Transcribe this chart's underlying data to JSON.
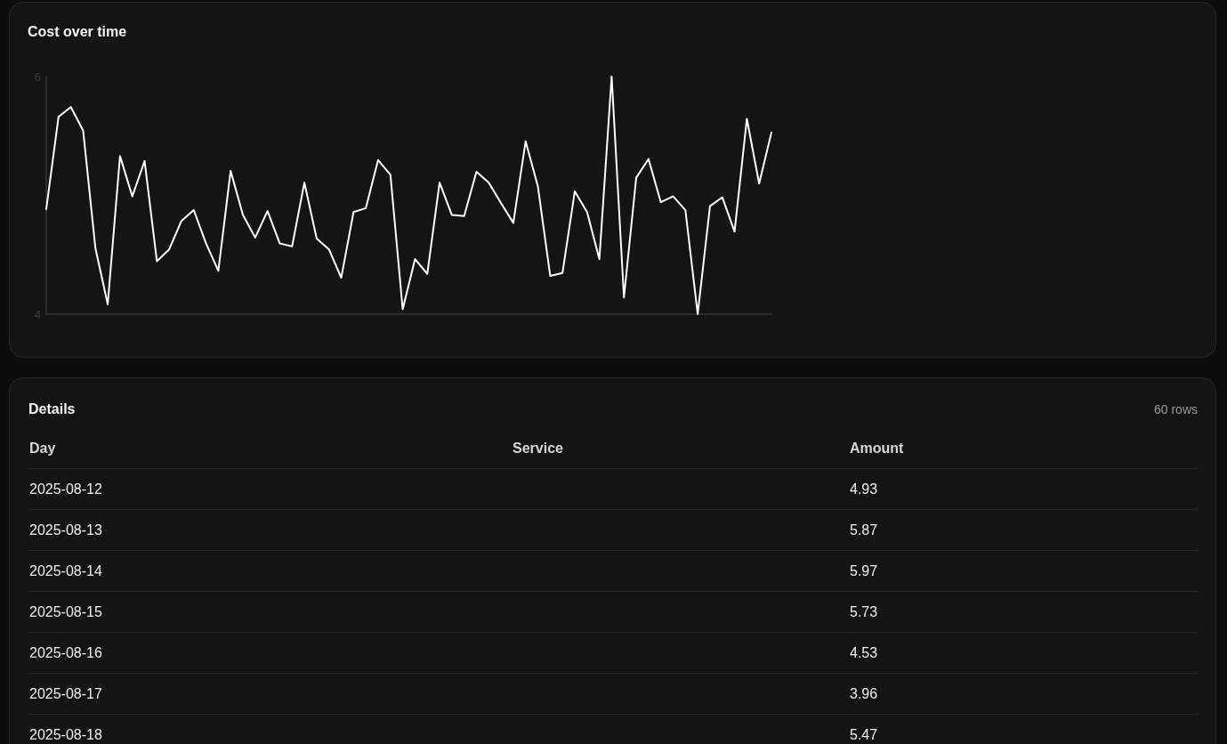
{
  "chart_data": [
    {
      "type": "line",
      "title": "Cost over time",
      "categories": [
        null,
        null,
        null,
        null,
        null,
        null,
        null,
        null,
        null,
        null,
        null,
        null,
        null,
        null,
        null,
        null,
        null,
        null,
        null,
        null,
        null,
        null,
        null,
        null,
        null,
        null,
        null,
        null,
        null,
        null,
        null,
        null,
        null,
        null,
        null,
        null,
        null,
        null,
        null,
        null,
        null,
        null,
        null,
        null,
        null,
        null,
        null,
        null,
        null,
        null,
        null,
        null,
        null,
        null,
        null,
        null,
        null,
        null,
        null,
        null
      ],
      "values": [
        4.93,
        5.87,
        5.97,
        5.73,
        4.53,
        3.96,
        5.47,
        5.06,
        5.42,
        4.4,
        4.52,
        4.81,
        4.92,
        4.58,
        4.3,
        5.32,
        4.87,
        4.64,
        4.91,
        4.58,
        4.55,
        5.2,
        4.63,
        4.52,
        4.23,
        4.9,
        4.94,
        5.43,
        5.28,
        3.91,
        4.42,
        4.27,
        5.2,
        4.87,
        4.86,
        5.31,
        5.2,
        4.99,
        4.79,
        5.62,
        5.16,
        4.25,
        4.28,
        5.11,
        4.9,
        4.42,
        6.28,
        4.03,
        5.25,
        5.44,
        5.0,
        5.06,
        4.92,
        3.86,
        4.96,
        5.05,
        4.7,
        5.85,
        5.19,
        5.71
      ],
      "color": "#ffffff",
      "ylim": [
        3.86,
        6.28
      ],
      "yticks": [
        {
          "value": 3.86,
          "label": "4"
        },
        {
          "value": 6.28,
          "label": "6"
        }
      ],
      "tick_labels": "y"
    },
    {
      "type": "other",
      "title": "Details",
      "subtitle": "60 rows",
      "categories": [
        "Day",
        "Service",
        "Amount"
      ],
      "cell_labels": [
        [
          "2025-08-12",
          null,
          "4.93"
        ],
        [
          "2025-08-13",
          null,
          "5.87"
        ],
        [
          "2025-08-14",
          null,
          "5.97"
        ],
        [
          "2025-08-15",
          null,
          "5.73"
        ],
        [
          "2025-08-16",
          null,
          "4.53"
        ],
        [
          "2025-08-17",
          null,
          "3.96"
        ],
        [
          "2025-08-18",
          null,
          "5.47"
        ]
      ]
    }
  ]
}
